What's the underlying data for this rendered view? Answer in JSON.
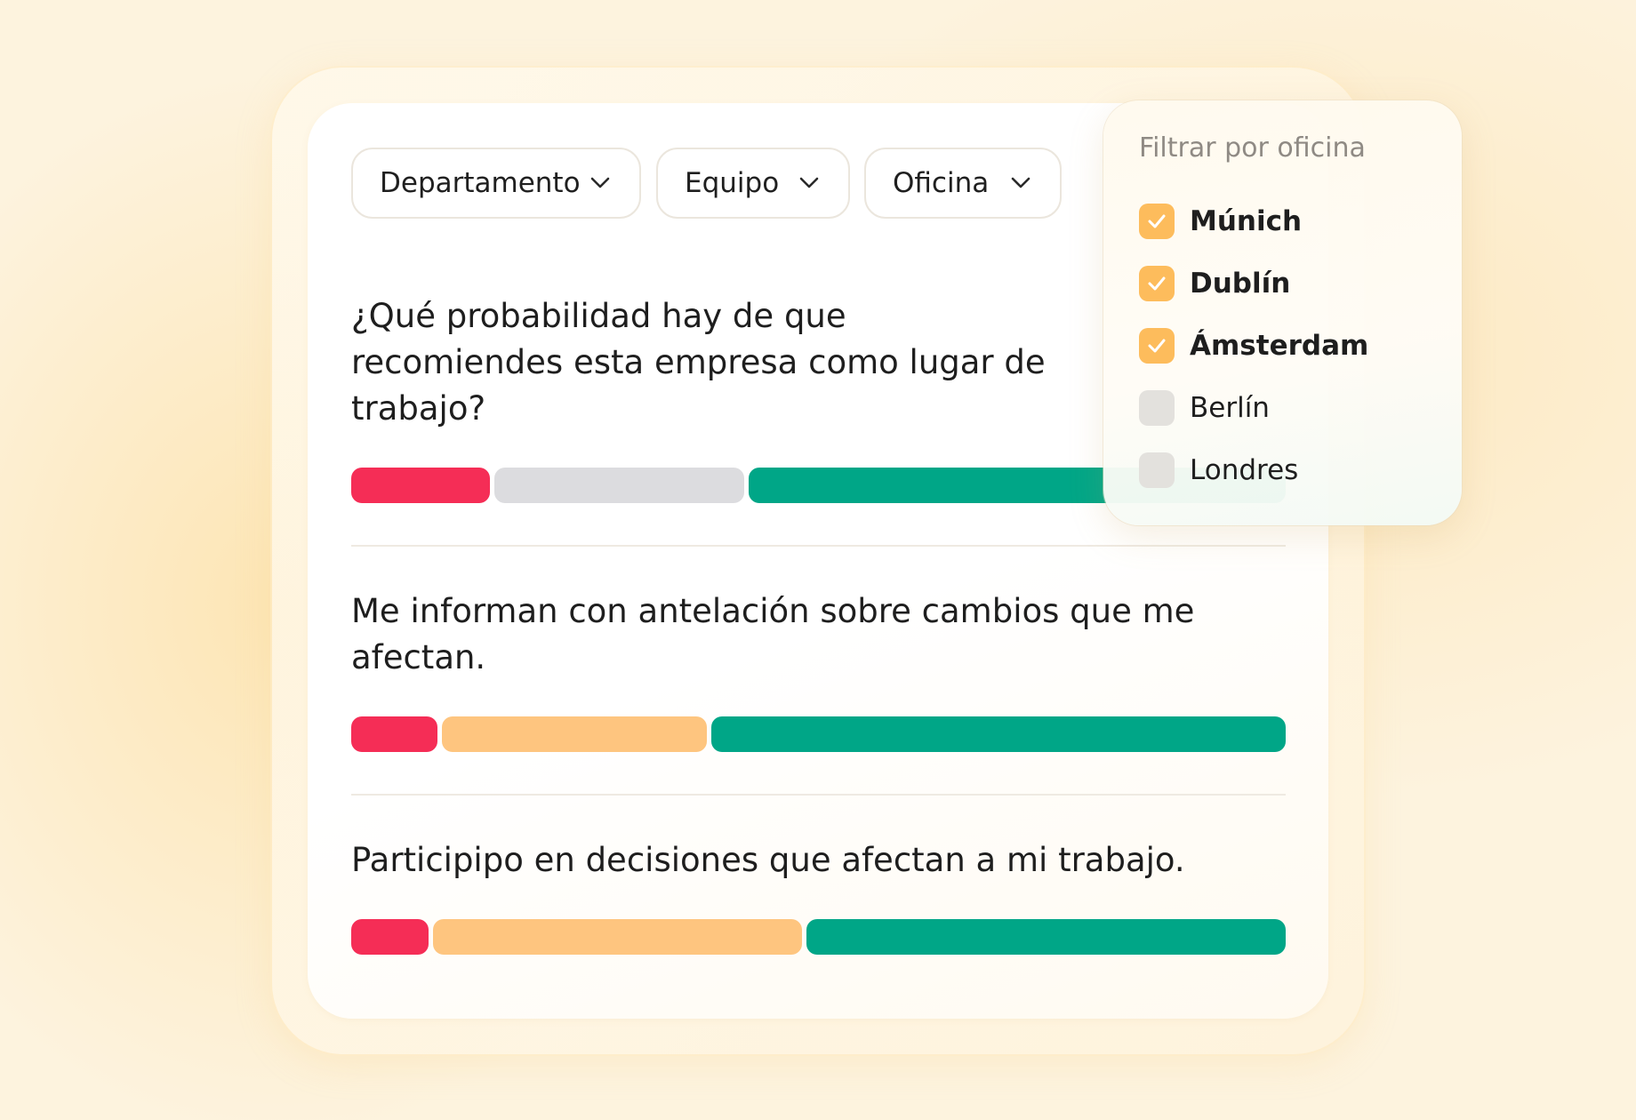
{
  "filters": {
    "department": "Departamento",
    "team": "Equipo",
    "office": "Oficina"
  },
  "questions": [
    {
      "text": "¿Qué probabilidad hay de que recomiendes esta empresa como lugar de trabajo?",
      "distribution": {
        "negative": 0.15,
        "neutral": 0.27,
        "positive": 0.58
      },
      "neutral_color": "#dcdcdf"
    },
    {
      "text": "Me informan con antelación sobre cambios que me afectan.",
      "distribution": {
        "negative": 0.093,
        "neutral": 0.285,
        "positive": 0.616
      },
      "neutral_color": "#fec57f"
    },
    {
      "text": "Participipo en decisiones que afectan a mi trabajo.",
      "distribution": {
        "negative": 0.083,
        "neutral": 0.396,
        "positive": 0.515
      },
      "neutral_color": "#fec57f"
    }
  ],
  "colors": {
    "negative": "#f52d56",
    "positive": "#00a687",
    "checkbox_checked": "#fdbc5c"
  },
  "office_filter": {
    "title": "Filtrar por oficina",
    "options": [
      {
        "label": "Múnich",
        "checked": true
      },
      {
        "label": "Dublín",
        "checked": true
      },
      {
        "label": "Ámsterdam",
        "checked": true
      },
      {
        "label": "Berlín",
        "checked": false
      },
      {
        "label": "Londres",
        "checked": false
      }
    ]
  }
}
